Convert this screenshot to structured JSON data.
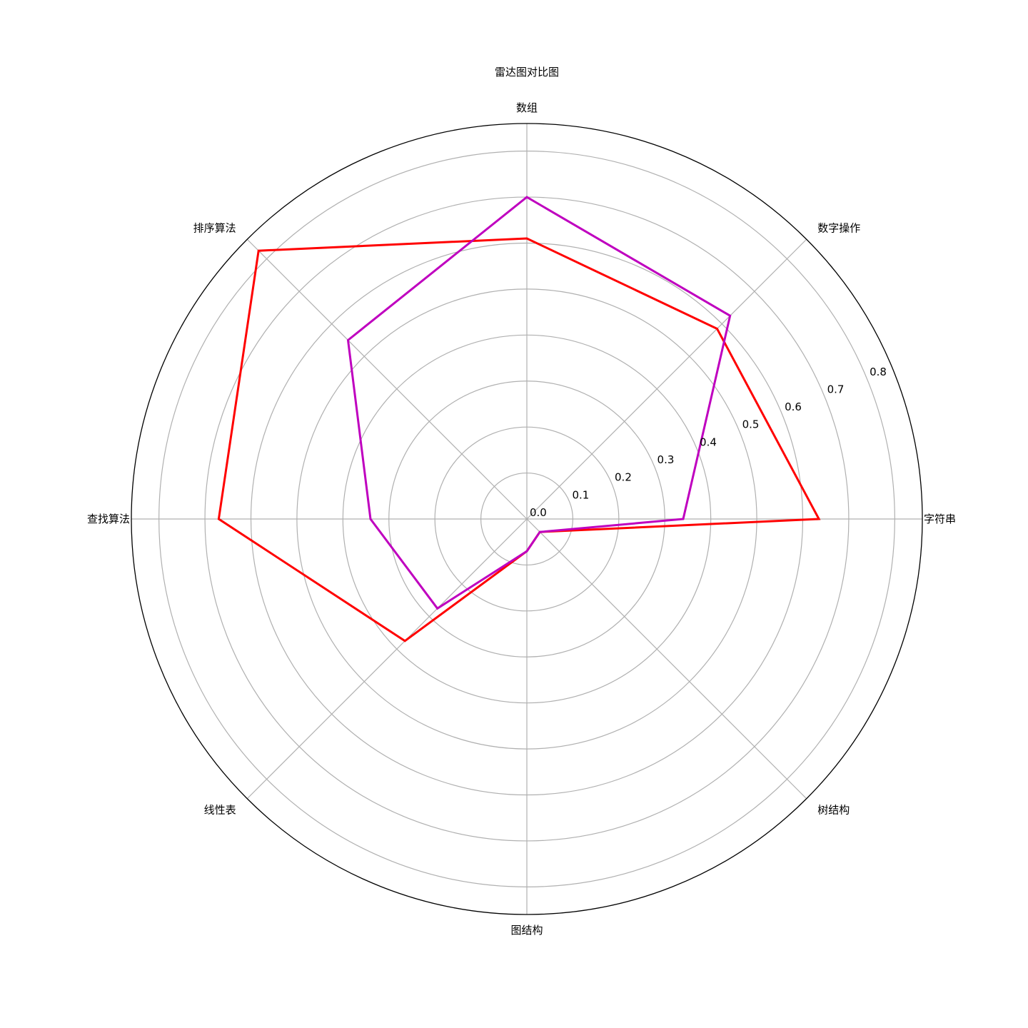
{
  "chart_data": {
    "type": "radar",
    "title": "雷达图对比图",
    "categories": [
      "字符串",
      "数字操作",
      "数组",
      "排序算法",
      "查找算法",
      "线性表",
      "图结构",
      "树结构"
    ],
    "radial_ticks": [
      "0.0",
      "0.1",
      "0.2",
      "0.3",
      "0.4",
      "0.5",
      "0.6",
      "0.7",
      "0.8"
    ],
    "rlim": [
      0,
      0.86
    ],
    "grid": true,
    "series": [
      {
        "color": "#ff0000",
        "values": [
          0.635,
          0.585,
          0.61,
          0.825,
          0.67,
          0.375,
          0.07,
          0.04
        ]
      },
      {
        "color": "#bf00bf",
        "values": [
          0.34,
          0.625,
          0.7,
          0.55,
          0.34,
          0.275,
          0.07,
          0.04
        ]
      }
    ]
  }
}
